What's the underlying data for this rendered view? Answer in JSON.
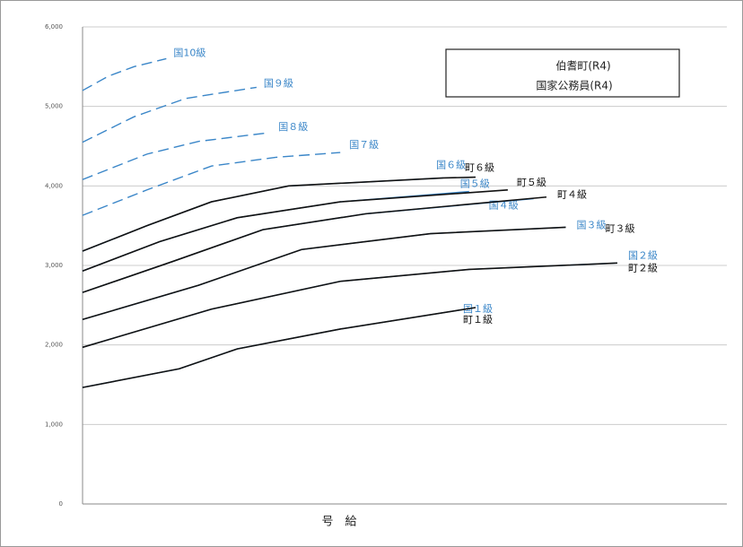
{
  "chart_data": {
    "type": "line",
    "legend_lines": [
      "伯耆町(R4)",
      "国家公務員(R4)"
    ],
    "x_label": "号　給",
    "xlim": [
      0,
      100
    ],
    "ylim": [
      0,
      6000
    ],
    "yticks": [
      0,
      {
        "value": 1000,
        "label": "1,000"
      },
      {
        "value": 2000,
        "label": "2,000"
      },
      {
        "value": 3000,
        "label": "3,000"
      },
      {
        "value": 4000,
        "label": "4,000"
      },
      {
        "value": 5000,
        "label": "5,000"
      },
      {
        "value": 6000,
        "label": "6,000"
      }
    ],
    "grid": true,
    "series": [
      {
        "name": "国10級",
        "color": "#3a86c8",
        "dashed": true,
        "x": [
          0,
          4,
          8,
          13
        ],
        "values": [
          5200,
          5380,
          5500,
          5600
        ]
      },
      {
        "name": "国９級",
        "color": "#3a86c8",
        "dashed": true,
        "x": [
          0,
          8,
          16,
          27
        ],
        "values": [
          4550,
          4870,
          5100,
          5240
        ]
      },
      {
        "name": "国８級",
        "color": "#3a86c8",
        "dashed": true,
        "x": [
          0,
          10,
          18,
          29
        ],
        "values": [
          4080,
          4400,
          4560,
          4670
        ]
      },
      {
        "name": "国７級",
        "color": "#3a86c8",
        "dashed": true,
        "x": [
          0,
          10,
          20,
          30,
          40
        ],
        "values": [
          3630,
          3950,
          4250,
          4360,
          4420
        ]
      },
      {
        "name": "国６級",
        "color": "#3a86c8",
        "dashed": false,
        "x": [
          0,
          10,
          20,
          32,
          56
        ],
        "values": [
          3180,
          3500,
          3800,
          4000,
          4100
        ]
      },
      {
        "name": "町６級",
        "color": "#111111",
        "dashed": false,
        "x": [
          0,
          10,
          20,
          32,
          56,
          61
        ],
        "values": [
          3180,
          3500,
          3800,
          4000,
          4100,
          4110
        ]
      },
      {
        "name": "国５級",
        "color": "#3a86c8",
        "dashed": false,
        "x": [
          0,
          12,
          24,
          40,
          60
        ],
        "values": [
          2930,
          3300,
          3600,
          3800,
          3930
        ]
      },
      {
        "name": "町５級",
        "color": "#111111",
        "dashed": false,
        "x": [
          0,
          12,
          24,
          40,
          66
        ],
        "values": [
          2930,
          3300,
          3600,
          3800,
          3950
        ]
      },
      {
        "name": "国４級",
        "color": "#3a86c8",
        "dashed": false,
        "x": [
          0,
          14,
          28,
          44,
          70
        ],
        "values": [
          2660,
          3050,
          3450,
          3650,
          3840
        ]
      },
      {
        "name": "町４級",
        "color": "#111111",
        "dashed": false,
        "x": [
          0,
          14,
          28,
          44,
          72
        ],
        "values": [
          2660,
          3050,
          3450,
          3650,
          3860
        ]
      },
      {
        "name": "国３級",
        "color": "#3a86c8",
        "dashed": false,
        "x": [
          0,
          18,
          34,
          54,
          75
        ],
        "values": [
          2320,
          2750,
          3200,
          3400,
          3480
        ]
      },
      {
        "name": "町３級",
        "color": "#111111",
        "dashed": false,
        "x": [
          0,
          18,
          34,
          54,
          75
        ],
        "values": [
          2320,
          2750,
          3200,
          3400,
          3480
        ]
      },
      {
        "name": "国２級",
        "color": "#3a86c8",
        "dashed": false,
        "x": [
          0,
          20,
          40,
          60,
          83
        ],
        "values": [
          1970,
          2450,
          2800,
          2950,
          3030
        ]
      },
      {
        "name": "町２級",
        "color": "#111111",
        "dashed": false,
        "x": [
          0,
          20,
          40,
          60,
          83
        ],
        "values": [
          1970,
          2450,
          2800,
          2950,
          3030
        ]
      },
      {
        "name": "国１級",
        "color": "#3a86c8",
        "dashed": false,
        "x": [
          0,
          15,
          24,
          40,
          61
        ],
        "values": [
          1465,
          1700,
          1950,
          2200,
          2470
        ]
      },
      {
        "name": "町１級",
        "color": "#111111",
        "dashed": false,
        "x": [
          0,
          15,
          24,
          40,
          61
        ],
        "values": [
          1465,
          1700,
          1950,
          2200,
          2470
        ]
      }
    ]
  }
}
